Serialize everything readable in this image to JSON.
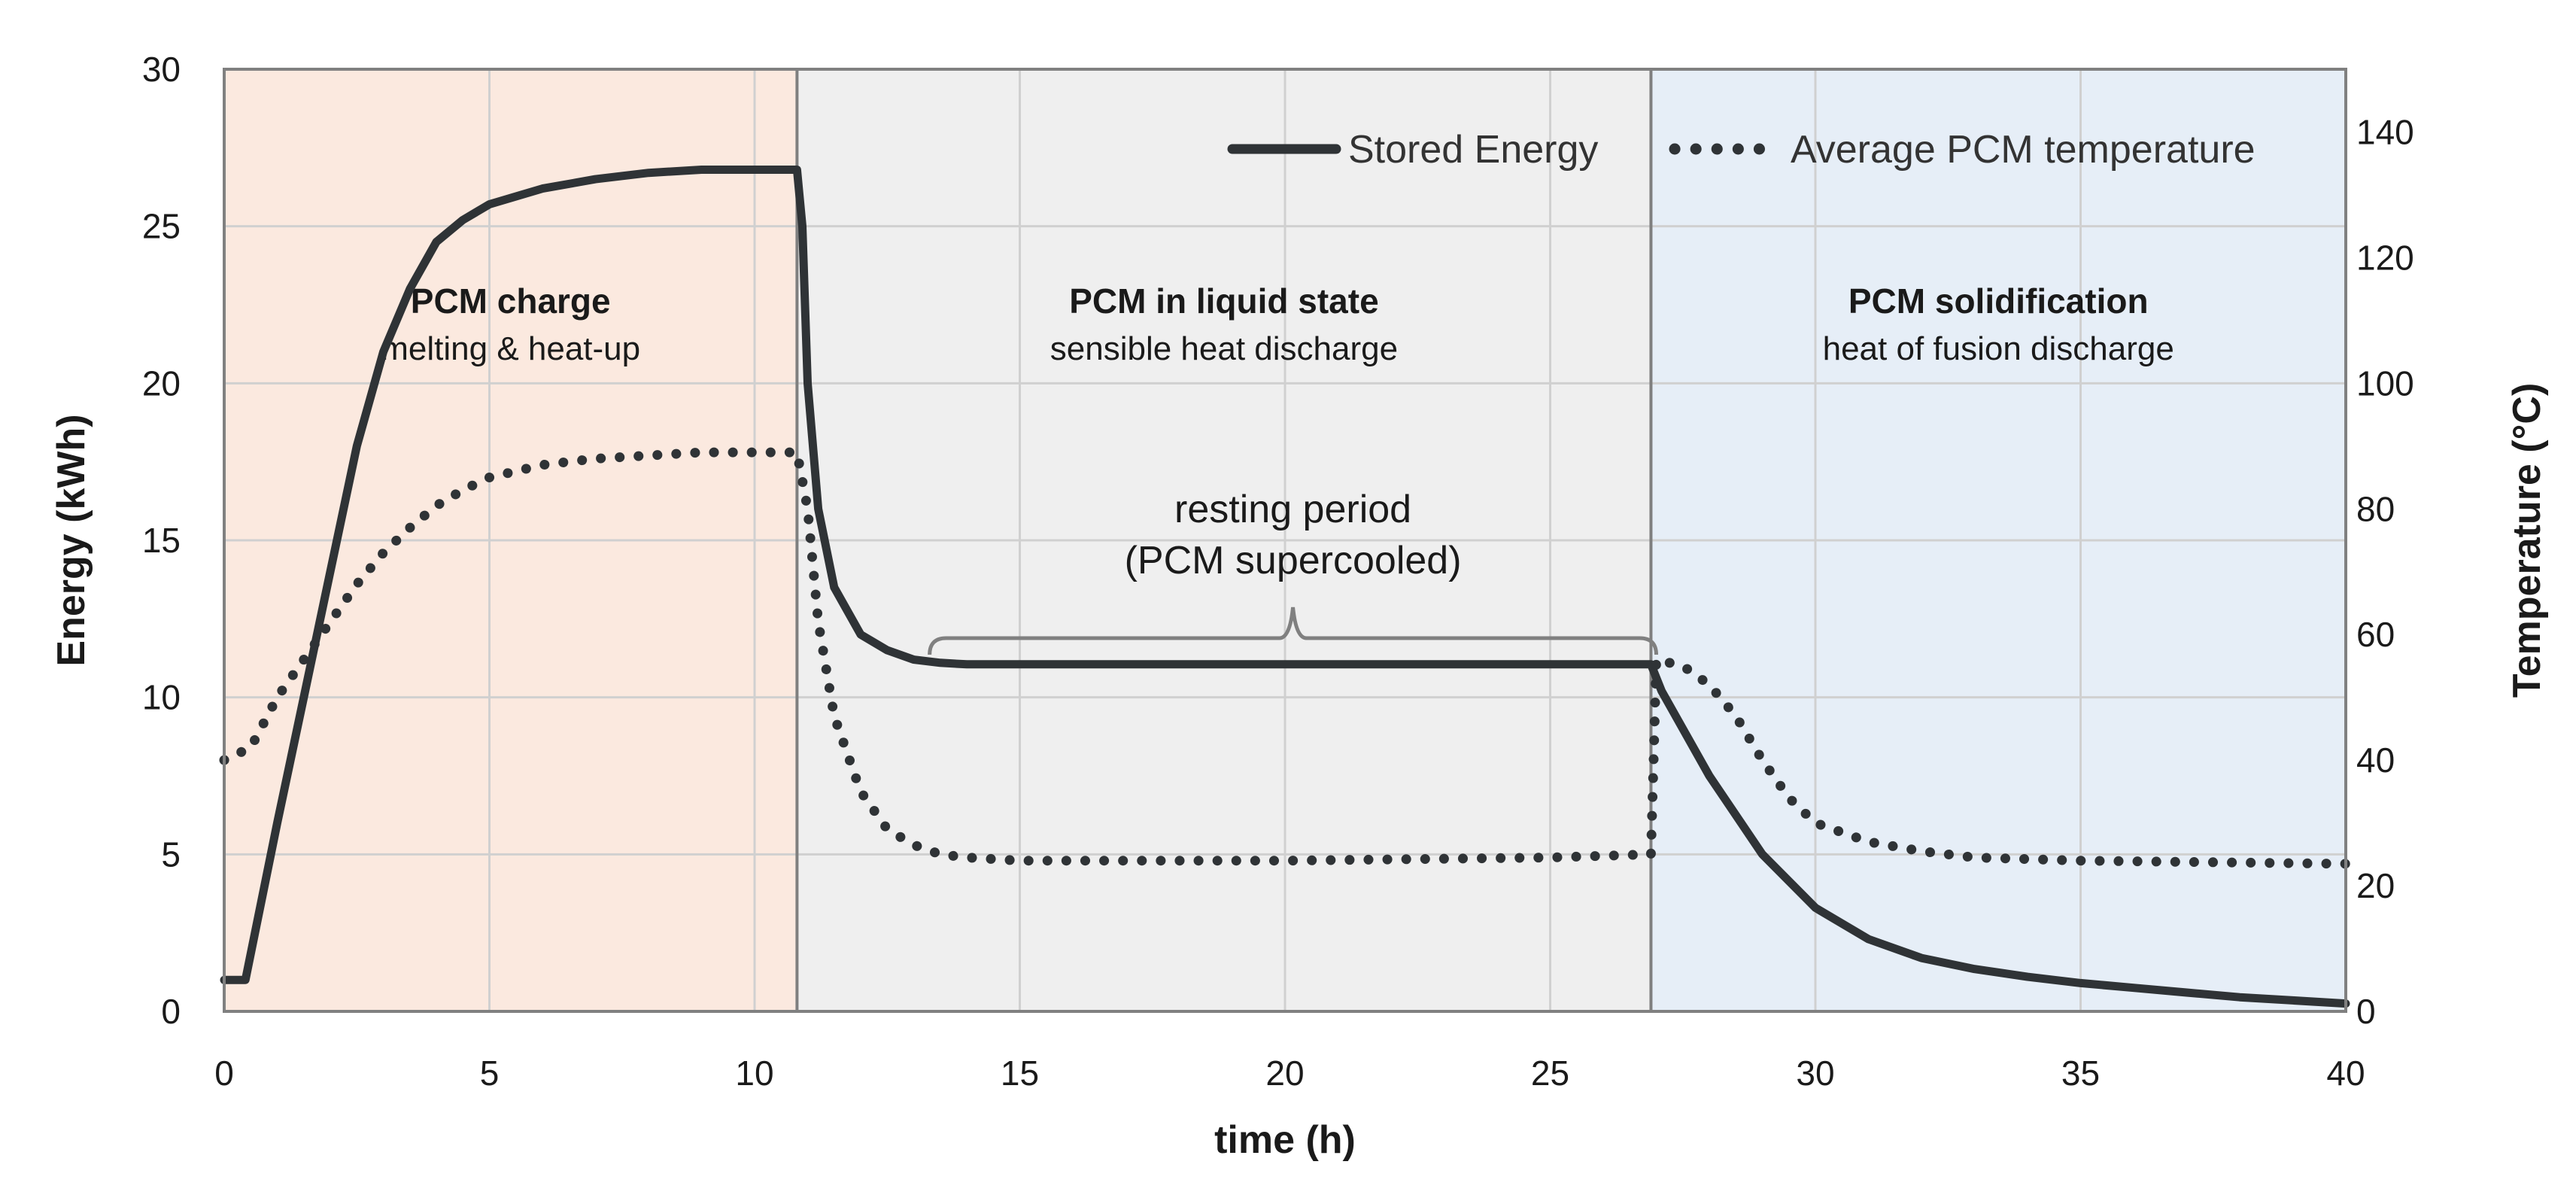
{
  "chart_data": {
    "type": "line",
    "title": "",
    "xlabel": "time  (h)",
    "ylabel": "Energy  (kWh)",
    "ylabel_right": "Temperature  (°C)",
    "xlim": [
      0,
      40
    ],
    "ylim": [
      0,
      30
    ],
    "ylim_right": [
      0,
      150
    ],
    "x_ticks": [
      "0",
      "5",
      "10",
      "15",
      "20",
      "25",
      "30",
      "35",
      "40"
    ],
    "y_ticks": [
      "0",
      "5",
      "10",
      "15",
      "20",
      "25",
      "30"
    ],
    "y_ticks_right": [
      "0",
      "20",
      "40",
      "60",
      "80",
      "100",
      "120",
      "140"
    ],
    "grid": true,
    "legend_position": "top-right",
    "regions": [
      {
        "x_start": 0,
        "x_end": 10.8,
        "color": "#fbe9df",
        "title": "PCM charge",
        "subtitle": "melting & heat-up"
      },
      {
        "x_start": 10.8,
        "x_end": 26.9,
        "color": "#efefef",
        "title": "PCM in liquid state",
        "subtitle": "sensible heat discharge"
      },
      {
        "x_start": 26.9,
        "x_end": 40,
        "color": "#e6eef7",
        "title": "PCM solidification",
        "subtitle": "heat of fusion discharge"
      }
    ],
    "annotation": {
      "line1": "resting period",
      "line2": "(PCM supercooled)",
      "x_start": 13.3,
      "x_end": 27.0
    },
    "series": [
      {
        "name": "Stored Energy",
        "axis": "left",
        "style": "solid",
        "color": "#2f3336",
        "x": [
          0,
          0.4,
          1,
          1.5,
          2,
          2.5,
          3,
          3.5,
          4,
          4.5,
          5,
          6,
          7,
          8,
          9,
          10,
          10.8,
          10.9,
          11,
          11.2,
          11.5,
          12,
          12.5,
          13,
          13.5,
          14,
          15,
          20,
          25,
          26.9,
          27.1,
          27.5,
          28,
          29,
          30,
          31,
          32,
          33,
          34,
          35,
          36,
          37,
          38,
          39,
          40
        ],
        "values": [
          1,
          1,
          6,
          10,
          14,
          18,
          21,
          23,
          24.5,
          25.2,
          25.7,
          26.2,
          26.5,
          26.7,
          26.8,
          26.8,
          26.8,
          25,
          20,
          16,
          13.5,
          12,
          11.5,
          11.2,
          11.1,
          11.05,
          11.05,
          11.05,
          11.05,
          11.05,
          10.2,
          9,
          7.5,
          5,
          3.3,
          2.3,
          1.7,
          1.35,
          1.1,
          0.9,
          0.75,
          0.6,
          0.45,
          0.35,
          0.25
        ]
      },
      {
        "name": "Average PCM temperature",
        "axis": "right",
        "style": "dotted",
        "color": "#2f3336",
        "x": [
          0,
          0.5,
          1,
          1.5,
          2,
          2.5,
          3,
          3.5,
          4,
          4.5,
          5,
          6,
          7,
          8,
          9,
          10,
          10.8,
          11,
          11.2,
          11.5,
          12,
          12.5,
          13,
          13.5,
          14,
          15,
          20,
          25,
          26.9,
          26.95,
          27,
          27.5,
          28,
          28.5,
          29,
          29.5,
          30,
          31,
          32,
          33,
          35,
          40
        ],
        "values": [
          40,
          42,
          50,
          56,
          62,
          68,
          73,
          77,
          80.5,
          83,
          85,
          87,
          88,
          88.5,
          89,
          89,
          89,
          80,
          62,
          47,
          35,
          29,
          26.5,
          25,
          24.5,
          24,
          24,
          24.5,
          25,
          40,
          56,
          55,
          52,
          47,
          40,
          34,
          30,
          27,
          25.5,
          24.5,
          24,
          23.5
        ]
      }
    ]
  }
}
